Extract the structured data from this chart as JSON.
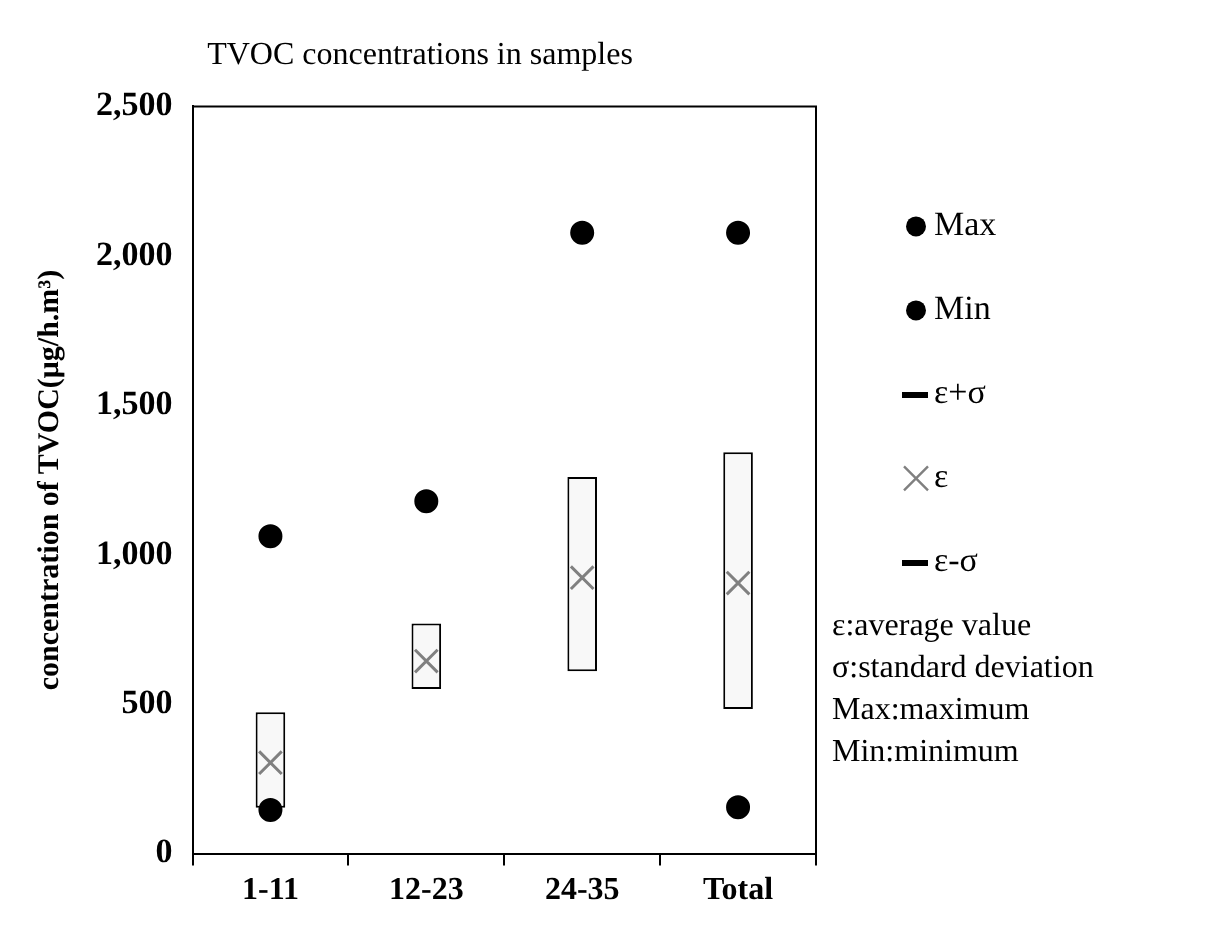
{
  "chart_data": {
    "type": "scatter",
    "title": "TVOC concentrations in samples",
    "ylabel": "concentration of TVOC(μg/h.m³)",
    "categories": [
      "1-11",
      "12-23",
      "24-35",
      "Total"
    ],
    "series": [
      {
        "name": "Max",
        "marker": "circle",
        "color": "#000000",
        "values": [
          1062,
          1179,
          2077,
          2077
        ]
      },
      {
        "name": "Min",
        "marker": "circle",
        "color": "#000000",
        "values": [
          146,
          null,
          null,
          155
        ]
      },
      {
        "name": "ε",
        "marker": "cross",
        "color": "#808080",
        "values": [
          304,
          644,
          923,
          905
        ]
      },
      {
        "type": "bar",
        "color": "#f8f8f8",
        "base": [
          153,
          551,
          610,
          484
        ],
        "values": [
          320,
          219,
          650,
          859
        ]
      }
    ],
    "ylim": [
      0,
      2500
    ],
    "yticks": [
      0,
      500,
      {
        "value": 1000,
        "label": "1,000"
      },
      {
        "value": 1500,
        "label": "1,500"
      },
      {
        "value": 2000,
        "label": "2,000"
      },
      {
        "value": 2500,
        "label": "2,500"
      }
    ],
    "grid": false,
    "legend": "right",
    "annotations": [
      "ε+σ",
      "ε-σ",
      "ε:average value",
      "σ:standard deviation",
      "Max:maximum",
      "Min:minimum"
    ]
  }
}
